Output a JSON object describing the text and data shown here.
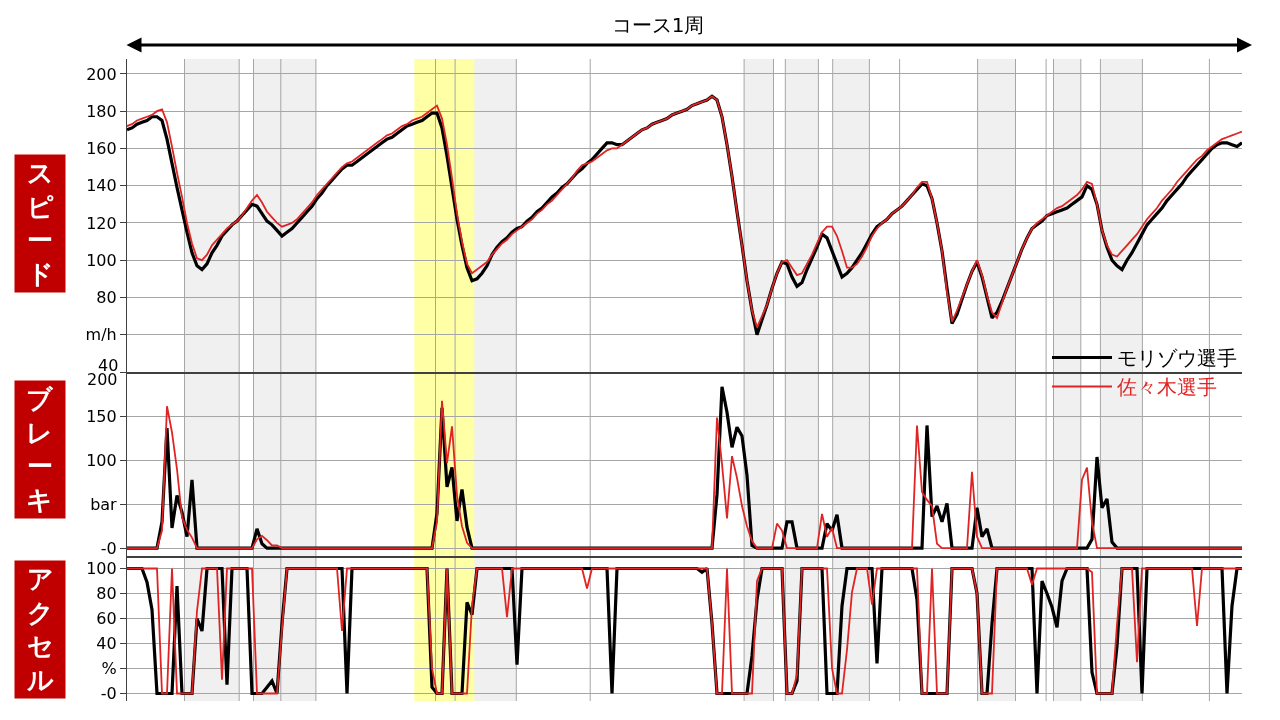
{
  "chart_data": [
    {
      "type": "line",
      "title": "コース1周",
      "ylabel": "スピード",
      "categories": [
        null,
        null,
        null,
        null,
        null,
        null,
        null,
        null,
        null,
        null,
        null,
        null,
        null,
        null,
        null,
        null,
        null,
        null,
        null,
        null,
        null,
        null,
        null,
        null,
        null,
        null,
        null,
        null,
        null,
        null,
        null,
        null,
        null,
        null,
        null,
        null,
        null,
        null,
        null,
        null,
        null,
        null,
        null,
        null,
        null,
        null,
        null,
        null,
        null,
        null,
        null,
        null,
        null,
        null,
        null,
        null,
        null,
        null,
        null,
        null,
        null,
        null,
        null,
        null,
        null,
        null,
        null,
        null,
        null,
        null,
        null,
        null,
        null,
        null,
        null,
        null,
        null,
        null,
        null,
        null,
        null,
        null,
        null,
        null,
        null,
        null,
        null,
        null,
        null,
        null,
        null,
        null,
        null,
        null,
        null,
        null,
        null,
        null,
        null,
        null,
        null,
        null,
        null,
        null,
        null,
        null,
        null,
        null,
        null,
        null,
        null,
        null,
        null,
        null,
        null,
        null,
        null,
        null,
        null,
        null,
        null,
        null,
        null,
        null,
        null,
        null,
        null,
        null,
        null,
        null,
        null,
        null,
        null,
        null,
        null,
        null,
        null,
        null,
        null,
        null,
        null,
        null,
        null,
        null,
        null,
        null,
        null,
        null,
        null,
        null,
        null,
        null,
        null,
        null,
        null,
        null,
        null,
        null,
        null,
        null,
        null,
        null,
        null,
        null,
        null,
        null,
        null,
        null,
        null,
        null,
        null,
        null,
        null,
        null,
        null,
        null,
        null,
        null,
        null,
        null,
        null,
        null,
        null,
        null,
        null,
        null,
        null,
        null,
        null,
        null,
        null,
        null,
        null,
        null,
        null,
        null,
        null,
        null,
        null,
        null,
        null,
        null,
        null,
        null,
        null,
        null,
        null,
        null,
        null,
        null,
        null,
        null,
        null,
        null,
        null,
        null,
        null,
        null,
        null,
        null,
        null,
        null,
        null,
        null
      ],
      "series": [
        {
          "name": "モリゾウ選手",
          "color": "#000000",
          "values": [
            170,
            171,
            173,
            174,
            175,
            177,
            177,
            175,
            165,
            152,
            139,
            127,
            115,
            104,
            97,
            95,
            98,
            104,
            108,
            113,
            116,
            119,
            121,
            124,
            127,
            130,
            129,
            125,
            121,
            119,
            116,
            113,
            115,
            117,
            120,
            123,
            126,
            129,
            133,
            136,
            140,
            143,
            146,
            149,
            151,
            151,
            153,
            155,
            157,
            159,
            161,
            163,
            165,
            166,
            168,
            170,
            172,
            173,
            174,
            175,
            177,
            179,
            179,
            171,
            156,
            139,
            122,
            108,
            96,
            89,
            90,
            93,
            97,
            103,
            107,
            110,
            112,
            115,
            117,
            118,
            121,
            123,
            126,
            128,
            131,
            134,
            136,
            139,
            141,
            144,
            147,
            149,
            152,
            154,
            157,
            160,
            163,
            163,
            162,
            162,
            164,
            166,
            168,
            170,
            171,
            173,
            174,
            175,
            176,
            178,
            179,
            180,
            181,
            183,
            184,
            185,
            186,
            188,
            186,
            177,
            162,
            145,
            126,
            108,
            89,
            73,
            60,
            68,
            76,
            85,
            93,
            99,
            98,
            91,
            86,
            88,
            95,
            101,
            107,
            114,
            112,
            105,
            98,
            91,
            93,
            96,
            100,
            104,
            109,
            114,
            118,
            120,
            122,
            125,
            127,
            129,
            132,
            135,
            138,
            141,
            140,
            133,
            120,
            105,
            85,
            66,
            71,
            79,
            87,
            94,
            99,
            91,
            80,
            69,
            72,
            78,
            85,
            92,
            99,
            106,
            112,
            117,
            119,
            121,
            124,
            125,
            126,
            127,
            128,
            130,
            132,
            134,
            140,
            138,
            130,
            116,
            107,
            100,
            97,
            95,
            100,
            104,
            109,
            114,
            119,
            122,
            125,
            128,
            132,
            135,
            138,
            141,
            145,
            148,
            151,
            154,
            157,
            160,
            162,
            163,
            163,
            162,
            161,
            163
          ]
        },
        {
          "name": "佐々木選手",
          "color": "#e02424",
          "values": [
            172,
            173,
            175,
            176,
            177,
            178,
            180,
            181,
            174,
            161,
            147,
            134,
            120,
            109,
            101,
            100,
            103,
            108,
            111,
            114,
            117,
            119,
            121,
            124,
            128,
            132,
            135,
            131,
            126,
            123,
            120,
            118,
            119,
            120,
            122,
            125,
            128,
            131,
            135,
            138,
            141,
            144,
            147,
            150,
            152,
            153,
            155,
            157,
            159,
            161,
            163,
            165,
            167,
            168,
            170,
            172,
            173,
            175,
            176,
            177,
            179,
            181,
            183,
            176,
            162,
            144,
            125,
            110,
            98,
            93,
            95,
            97,
            99,
            103,
            106,
            109,
            111,
            114,
            116,
            118,
            120,
            122,
            125,
            127,
            130,
            132,
            135,
            138,
            141,
            144,
            148,
            151,
            152,
            153,
            155,
            157,
            159,
            160,
            160,
            162,
            164,
            166,
            168,
            170,
            171,
            173,
            174,
            175,
            176,
            178,
            179,
            180,
            181,
            183,
            184,
            185,
            186,
            188,
            186,
            177,
            162,
            145,
            126,
            108,
            89,
            73,
            64,
            70,
            76,
            85,
            93,
            99,
            100,
            96,
            92,
            93,
            98,
            103,
            109,
            115,
            118,
            118,
            113,
            105,
            96,
            96,
            98,
            102,
            107,
            113,
            117,
            120,
            122,
            125,
            127,
            129,
            132,
            135,
            139,
            142,
            142,
            133,
            120,
            105,
            83,
            67,
            73,
            80,
            87,
            94,
            100,
            92,
            81,
            72,
            69,
            77,
            85,
            92,
            99,
            106,
            112,
            117,
            120,
            122,
            124,
            126,
            128,
            129,
            131,
            133,
            135,
            138,
            142,
            141,
            130,
            116,
            108,
            103,
            102,
            105,
            108,
            111,
            114,
            118,
            122,
            125,
            128,
            132,
            135,
            138,
            142,
            145,
            148,
            151,
            154,
            156,
            159,
            161,
            163,
            165,
            166,
            167,
            168,
            169
          ]
        }
      ],
      "ylim": [
        40,
        208
      ],
      "yticks": [
        40,
        {
          "value": 60,
          "label": "m/h"
        },
        80,
        100,
        120,
        140,
        160,
        180,
        200
      ],
      "grid": "y",
      "legend": "bottom right",
      "tick_labels": "y"
    },
    {
      "type": "line",
      "ylabel": "ブレーキ",
      "categories": [
        null,
        null,
        null,
        null,
        null,
        null,
        null,
        null,
        null,
        null,
        null,
        null,
        null,
        null,
        null,
        null,
        null,
        null,
        null,
        null,
        null,
        null,
        null,
        null,
        null,
        null,
        null,
        null,
        null,
        null,
        null,
        null,
        null,
        null,
        null,
        null,
        null,
        null,
        null,
        null,
        null,
        null,
        null,
        null,
        null,
        null,
        null,
        null,
        null,
        null,
        null,
        null,
        null,
        null,
        null,
        null,
        null,
        null,
        null,
        null,
        null,
        null,
        null,
        null,
        null,
        null,
        null,
        null,
        null,
        null,
        null,
        null,
        null,
        null,
        null,
        null,
        null,
        null,
        null,
        null,
        null,
        null,
        null,
        null,
        null,
        null,
        null,
        null,
        null,
        null,
        null,
        null,
        null,
        null,
        null,
        null,
        null,
        null,
        null,
        null,
        null,
        null,
        null,
        null,
        null,
        null,
        null,
        null,
        null,
        null,
        null,
        null,
        null,
        null,
        null,
        null,
        null,
        null,
        null,
        null,
        null,
        null,
        null,
        null,
        null,
        null,
        null,
        null,
        null,
        null,
        null,
        null,
        null,
        null,
        null,
        null,
        null,
        null,
        null,
        null,
        null,
        null,
        null,
        null,
        null,
        null,
        null,
        null,
        null,
        null,
        null,
        null,
        null,
        null,
        null,
        null,
        null,
        null,
        null,
        null,
        null,
        null,
        null,
        null,
        null,
        null,
        null,
        null,
        null,
        null,
        null,
        null,
        null,
        null,
        null,
        null,
        null,
        null,
        null,
        null,
        null,
        null,
        null,
        null,
        null,
        null,
        null,
        null,
        null,
        null,
        null,
        null,
        null,
        null,
        null,
        null,
        null,
        null,
        null,
        null,
        null,
        null,
        null,
        null,
        null,
        null,
        null,
        null,
        null,
        null,
        null,
        null,
        null,
        null,
        null,
        null,
        null,
        null,
        null,
        null,
        null,
        null,
        null,
        null
      ],
      "series": [
        {
          "color": "#000000",
          "values": [
            0,
            0,
            0,
            0,
            0,
            0,
            0,
            30,
            137,
            23,
            60,
            41,
            13,
            78,
            0,
            0,
            0,
            0,
            0,
            0,
            0,
            0,
            0,
            0,
            0,
            0,
            22,
            5,
            0,
            0,
            0,
            0,
            0,
            0,
            0,
            0,
            0,
            0,
            0,
            0,
            0,
            0,
            0,
            0,
            0,
            0,
            0,
            0,
            0,
            0,
            0,
            0,
            0,
            0,
            0,
            0,
            0,
            0,
            0,
            0,
            0,
            0,
            40,
            160,
            70,
            92,
            31,
            67,
            24,
            0,
            0,
            0,
            0,
            0,
            0,
            0,
            0,
            0,
            0,
            0,
            0,
            0,
            0,
            0,
            0,
            0,
            0,
            0,
            0,
            0,
            0,
            0,
            0,
            0,
            0,
            0,
            0,
            0,
            0,
            0,
            0,
            0,
            0,
            0,
            0,
            0,
            0,
            0,
            0,
            0,
            0,
            0,
            0,
            0,
            0,
            0,
            0,
            0,
            61,
            184,
            155,
            115,
            138,
            128,
            83,
            3,
            0,
            0,
            0,
            0,
            0,
            0,
            30,
            30,
            0,
            0,
            0,
            0,
            0,
            0,
            28,
            20,
            38,
            0,
            0,
            0,
            0,
            0,
            0,
            0,
            0,
            0,
            0,
            0,
            0,
            0,
            0,
            0,
            0,
            0,
            140,
            36,
            48,
            30,
            51,
            0,
            0,
            0,
            0,
            0,
            46,
            13,
            22,
            0,
            0,
            0,
            0,
            0,
            0,
            0,
            0,
            0,
            0,
            0,
            0,
            0,
            0,
            0,
            0,
            0,
            0,
            0,
            0,
            10,
            104,
            46,
            56,
            7,
            0,
            0,
            0,
            0,
            0,
            0,
            0,
            0,
            0,
            0,
            0,
            0,
            0,
            0,
            0,
            0,
            0,
            0,
            0,
            0,
            0,
            0,
            0,
            0,
            0,
            0
          ]
        },
        {
          "color": "#e02424",
          "values": [
            0,
            0,
            0,
            0,
            0,
            0,
            0,
            20,
            162,
            132,
            90,
            35,
            21,
            12,
            0,
            0,
            0,
            0,
            0,
            0,
            0,
            0,
            0,
            0,
            0,
            0,
            10,
            14,
            9,
            3,
            3,
            0,
            0,
            0,
            0,
            0,
            0,
            0,
            0,
            0,
            0,
            0,
            0,
            0,
            0,
            0,
            0,
            0,
            0,
            0,
            0,
            0,
            0,
            0,
            0,
            0,
            0,
            0,
            0,
            0,
            0,
            0,
            30,
            168,
            97,
            139,
            60,
            25,
            6,
            0,
            0,
            0,
            0,
            0,
            0,
            0,
            0,
            0,
            0,
            0,
            0,
            0,
            0,
            0,
            0,
            0,
            0,
            0,
            0,
            0,
            0,
            0,
            0,
            0,
            0,
            0,
            0,
            0,
            0,
            0,
            0,
            0,
            0,
            0,
            0,
            0,
            0,
            0,
            0,
            0,
            0,
            0,
            0,
            0,
            0,
            0,
            0,
            0,
            149,
            96,
            34,
            105,
            80,
            48,
            25,
            8,
            0,
            0,
            0,
            0,
            28,
            20,
            0,
            0,
            0,
            0,
            0,
            0,
            0,
            39,
            13,
            23,
            0,
            0,
            0,
            0,
            0,
            0,
            0,
            0,
            0,
            0,
            0,
            0,
            0,
            0,
            0,
            0,
            140,
            64,
            55,
            48,
            5,
            0,
            0,
            0,
            0,
            0,
            0,
            87,
            13,
            0,
            0,
            0,
            0,
            0,
            0,
            0,
            0,
            0,
            0,
            0,
            0,
            0,
            0,
            0,
            0,
            0,
            0,
            0,
            0,
            78,
            92,
            30,
            0,
            0,
            0,
            0,
            0,
            0,
            0,
            0,
            0,
            0,
            0,
            0,
            0,
            0,
            0,
            0,
            0,
            0,
            0,
            0,
            0,
            0,
            0,
            0,
            0,
            0,
            0,
            0,
            0,
            0
          ]
        }
      ],
      "ylim": [
        -9,
        201
      ],
      "yticks": [
        {
          "value": 0,
          "label": "-0"
        },
        {
          "value": 50,
          "label": "bar"
        },
        100,
        150,
        200
      ],
      "grid": "y",
      "tick_labels": "y"
    },
    {
      "type": "line",
      "ylabel": "アクセル",
      "categories": [
        null,
        null,
        null,
        null,
        null,
        null,
        null,
        null,
        null,
        null,
        null,
        null,
        null,
        null,
        null,
        null,
        null,
        null,
        null,
        null,
        null,
        null,
        null,
        null,
        null,
        null,
        null,
        null,
        null,
        null,
        null,
        null,
        null,
        null,
        null,
        null,
        null,
        null,
        null,
        null,
        null,
        null,
        null,
        null,
        null,
        null,
        null,
        null,
        null,
        null,
        null,
        null,
        null,
        null,
        null,
        null,
        null,
        null,
        null,
        null,
        null,
        null,
        null,
        null,
        null,
        null,
        null,
        null,
        null,
        null,
        null,
        null,
        null,
        null,
        null,
        null,
        null,
        null,
        null,
        null,
        null,
        null,
        null,
        null,
        null,
        null,
        null,
        null,
        null,
        null,
        null,
        null,
        null,
        null,
        null,
        null,
        null,
        null,
        null,
        null,
        null,
        null,
        null,
        null,
        null,
        null,
        null,
        null,
        null,
        null,
        null,
        null,
        null,
        null,
        null,
        null,
        null,
        null,
        null,
        null,
        null,
        null,
        null,
        null,
        null,
        null,
        null,
        null,
        null,
        null,
        null,
        null,
        null,
        null,
        null,
        null,
        null,
        null,
        null,
        null,
        null,
        null,
        null,
        null,
        null,
        null,
        null,
        null,
        null,
        null,
        null,
        null,
        null,
        null,
        null,
        null,
        null,
        null,
        null,
        null,
        null,
        null,
        null,
        null,
        null,
        null,
        null,
        null,
        null,
        null,
        null,
        null,
        null,
        null,
        null,
        null,
        null,
        null,
        null,
        null,
        null,
        null,
        null,
        null,
        null,
        null,
        null,
        null,
        null,
        null,
        null,
        null,
        null,
        null,
        null,
        null,
        null,
        null,
        null,
        null,
        null,
        null,
        null,
        null,
        null,
        null,
        null,
        null,
        null,
        null,
        null,
        null,
        null,
        null,
        null,
        null,
        null,
        null,
        null,
        null,
        null,
        null,
        null,
        null
      ],
      "series": [
        {
          "color": "#000000",
          "values": [
            100,
            100,
            100,
            100,
            89,
            67,
            0,
            0,
            0,
            0,
            86,
            0,
            0,
            0,
            60,
            50,
            100,
            100,
            100,
            100,
            7,
            100,
            100,
            100,
            100,
            0,
            0,
            0,
            5,
            10,
            0,
            56,
            100,
            100,
            100,
            100,
            100,
            100,
            100,
            100,
            100,
            100,
            100,
            100,
            0,
            100,
            100,
            100,
            100,
            100,
            100,
            100,
            100,
            100,
            100,
            100,
            100,
            100,
            100,
            100,
            100,
            5,
            0,
            0,
            100,
            0,
            0,
            0,
            73,
            63,
            100,
            100,
            100,
            100,
            100,
            100,
            100,
            100,
            23,
            100,
            100,
            100,
            100,
            100,
            100,
            100,
            100,
            100,
            100,
            100,
            100,
            100,
            100,
            100,
            100,
            100,
            100,
            0,
            100,
            100,
            100,
            100,
            100,
            100,
            100,
            100,
            100,
            100,
            100,
            100,
            100,
            100,
            100,
            100,
            100,
            97,
            100,
            56,
            0,
            0,
            0,
            0,
            0,
            0,
            0,
            30,
            75,
            100,
            100,
            100,
            100,
            100,
            0,
            0,
            10,
            100,
            100,
            100,
            100,
            100,
            0,
            0,
            0,
            70,
            100,
            100,
            100,
            100,
            100,
            100,
            24,
            100,
            100,
            100,
            100,
            100,
            100,
            100,
            75,
            0,
            0,
            0,
            0,
            0,
            0,
            100,
            100,
            100,
            100,
            100,
            80,
            0,
            0,
            56,
            100,
            100,
            100,
            100,
            100,
            100,
            100,
            100,
            0,
            90,
            80,
            69,
            53,
            90,
            100,
            100,
            100,
            100,
            100,
            17,
            0,
            0,
            0,
            0,
            38,
            100,
            100,
            100,
            100,
            0,
            100,
            100,
            100,
            100,
            100,
            100,
            100,
            100,
            100,
            100,
            100,
            100,
            100,
            100,
            100,
            100,
            0,
            70,
            100,
            100
          ]
        },
        {
          "color": "#e02424",
          "values": [
            100,
            100,
            100,
            100,
            100,
            100,
            100,
            0,
            0,
            100,
            0,
            0,
            0,
            0,
            66,
            100,
            100,
            100,
            100,
            11,
            100,
            100,
            100,
            100,
            100,
            100,
            0,
            0,
            0,
            0,
            0,
            52,
            100,
            100,
            100,
            100,
            100,
            100,
            100,
            100,
            100,
            100,
            100,
            50,
            100,
            100,
            100,
            100,
            100,
            100,
            100,
            100,
            100,
            100,
            100,
            100,
            100,
            100,
            100,
            100,
            100,
            20,
            0,
            0,
            100,
            0,
            0,
            0,
            0,
            70,
            100,
            100,
            100,
            100,
            100,
            100,
            61,
            100,
            100,
            100,
            100,
            100,
            100,
            100,
            100,
            100,
            100,
            100,
            100,
            100,
            100,
            100,
            84,
            100,
            100,
            100,
            100,
            100,
            100,
            100,
            100,
            100,
            100,
            100,
            100,
            100,
            100,
            100,
            100,
            100,
            100,
            100,
            100,
            100,
            100,
            100,
            100,
            56,
            0,
            0,
            100,
            0,
            0,
            0,
            0,
            0,
            90,
            100,
            100,
            100,
            100,
            100,
            0,
            0,
            15,
            100,
            100,
            100,
            100,
            100,
            100,
            20,
            0,
            0,
            35,
            81,
            100,
            100,
            100,
            71,
            100,
            100,
            100,
            100,
            100,
            100,
            100,
            100,
            100,
            0,
            0,
            100,
            0,
            0,
            0,
            100,
            100,
            100,
            100,
            100,
            80,
            0,
            0,
            0,
            100,
            100,
            100,
            100,
            100,
            100,
            100,
            87,
            100,
            100,
            100,
            100,
            100,
            100,
            100,
            100,
            100,
            100,
            100,
            97,
            0,
            0,
            0,
            0,
            55,
            100,
            100,
            100,
            25,
            100,
            100,
            100,
            100,
            100,
            100,
            100,
            100,
            100,
            100,
            100,
            54,
            100,
            100,
            100,
            100,
            100,
            100,
            100,
            100,
            100
          ]
        }
      ],
      "ylim": [
        -6,
        110
      ],
      "yticks": [
        {
          "value": 0,
          "label": "-0"
        },
        {
          "value": 20,
          "label": "%"
        },
        40,
        60,
        80,
        100
      ],
      "grid": "y",
      "tick_labels": "y"
    }
  ]
}
